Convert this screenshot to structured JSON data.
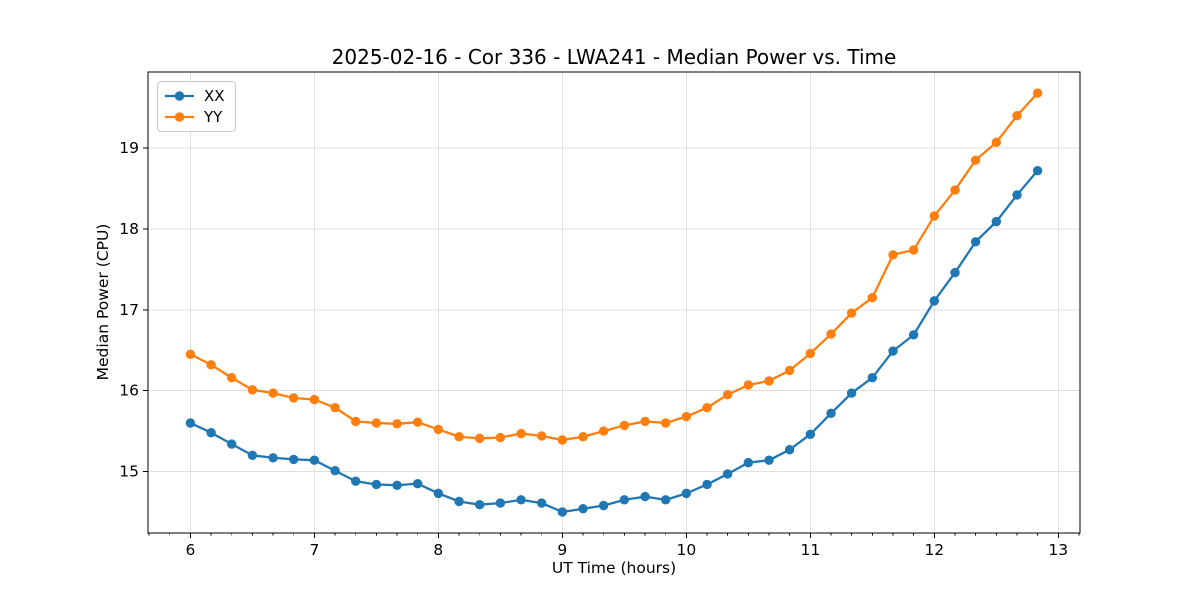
{
  "figure": {
    "background": "#ffffff",
    "frame_color": "#000000",
    "grid_color": "#e0e0e0"
  },
  "chart_data": {
    "type": "line",
    "title": "2025-02-16 - Cor 336 - LWA241 - Median Power vs. Time",
    "xlabel": "UT Time (hours)",
    "ylabel": "Median Power (CPU)",
    "xlim": [
      5.658,
      13.175
    ],
    "ylim": [
      14.24,
      19.94
    ],
    "xticks": [
      6,
      7,
      8,
      9,
      10,
      11,
      12,
      13
    ],
    "yticks": [
      15,
      16,
      17,
      18,
      19
    ],
    "x_minor_step": 0.16667,
    "grid": true,
    "legend_position": "upper left",
    "x": [
      6.0,
      6.167,
      6.333,
      6.5,
      6.667,
      6.833,
      7.0,
      7.167,
      7.333,
      7.5,
      7.667,
      7.833,
      8.0,
      8.167,
      8.333,
      8.5,
      8.667,
      8.833,
      9.0,
      9.167,
      9.333,
      9.5,
      9.667,
      9.833,
      10.0,
      10.167,
      10.333,
      10.5,
      10.667,
      10.833,
      11.0,
      11.167,
      11.333,
      11.5,
      11.667,
      11.833,
      12.0,
      12.167,
      12.333,
      12.5,
      12.667,
      12.833
    ],
    "series": [
      {
        "name": "XX",
        "color": "#1f77b4",
        "values": [
          15.6,
          15.48,
          15.34,
          15.2,
          15.17,
          15.15,
          15.14,
          15.01,
          14.88,
          14.84,
          14.83,
          14.85,
          14.73,
          14.63,
          14.59,
          14.61,
          14.65,
          14.61,
          14.5,
          14.54,
          14.58,
          14.65,
          14.69,
          14.65,
          14.73,
          14.84,
          14.97,
          15.11,
          15.14,
          15.27,
          15.46,
          15.72,
          15.97,
          16.16,
          16.49,
          16.69,
          17.11,
          17.46,
          17.84,
          18.09,
          18.42,
          18.72
        ]
      },
      {
        "name": "YY",
        "color": "#ff7f0e",
        "values": [
          16.45,
          16.32,
          16.16,
          16.01,
          15.97,
          15.91,
          15.89,
          15.79,
          15.62,
          15.6,
          15.59,
          15.61,
          15.52,
          15.43,
          15.41,
          15.42,
          15.47,
          15.44,
          15.39,
          15.43,
          15.5,
          15.57,
          15.62,
          15.6,
          15.68,
          15.79,
          15.95,
          16.07,
          16.12,
          16.25,
          16.46,
          16.7,
          16.96,
          17.15,
          17.68,
          17.74,
          18.16,
          18.48,
          18.85,
          19.07,
          19.4,
          19.68
        ]
      }
    ]
  }
}
